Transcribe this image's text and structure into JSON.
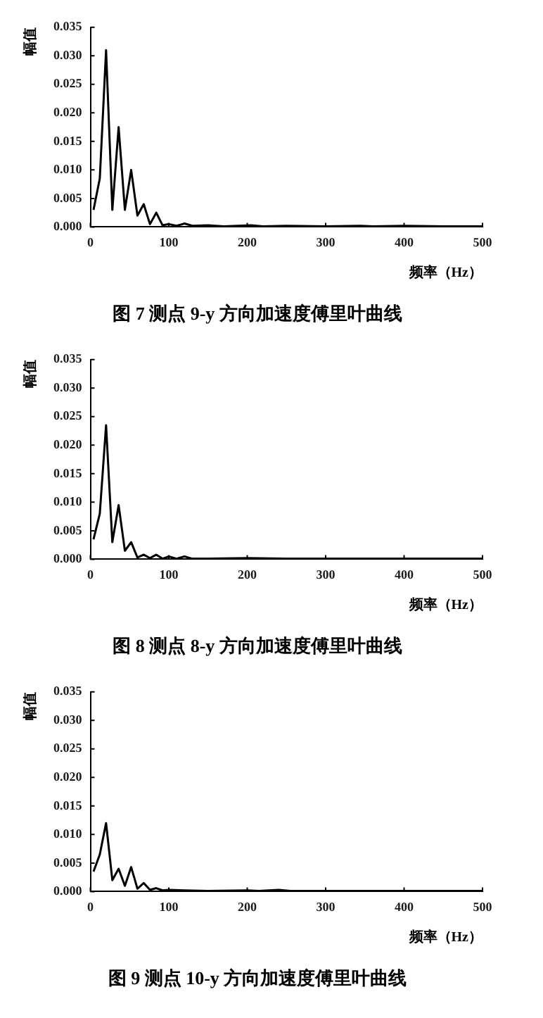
{
  "chart_data": [
    {
      "type": "line",
      "title": "图 7  测点 9-y 方向加速度傅里叶曲线",
      "xlabel": "频率（Hz）",
      "ylabel": "幅值",
      "marker": "none",
      "line_style": "solid",
      "xlim": [
        0,
        500
      ],
      "xticks": [
        0,
        100,
        200,
        300,
        400,
        500
      ],
      "ylim": [
        0,
        0.035
      ],
      "yticks": [
        {
          "value": 0,
          "label": "0.000"
        },
        {
          "value": 0.005,
          "label": "0.005"
        },
        {
          "value": 0.01,
          "label": "0.010"
        },
        {
          "value": 0.015,
          "label": "0.015"
        },
        {
          "value": 0.02,
          "label": "0.020"
        },
        {
          "value": 0.025,
          "label": "0.025"
        },
        {
          "value": 0.03,
          "label": "0.030"
        },
        {
          "value": 0.035,
          "label": "0.035"
        }
      ],
      "series": [
        {
          "color": "#000000",
          "x": [
            4,
            12,
            20,
            28,
            36,
            44,
            52,
            60,
            68,
            76,
            84,
            92,
            100,
            110,
            120,
            130,
            150,
            170,
            205,
            220,
            250,
            300,
            345,
            360,
            400,
            450,
            500
          ],
          "values": [
            0.003,
            0.0085,
            0.031,
            0.003,
            0.0175,
            0.003,
            0.01,
            0.002,
            0.004,
            0.0005,
            0.0025,
            0.0003,
            0.0005,
            0.0002,
            0.0006,
            0.0002,
            0.0003,
            0.0001,
            0.0003,
            0.0001,
            0.0002,
            0.0001,
            0.0002,
            0.0001,
            0.0002,
            0.0001,
            0.0001
          ]
        }
      ]
    },
    {
      "type": "line",
      "title": "图 8  测点 8-y 方向加速度傅里叶曲线",
      "xlabel": "频率（Hz）",
      "ylabel": "幅值",
      "marker": "none",
      "line_style": "solid",
      "xlim": [
        0,
        500
      ],
      "xticks": [
        0,
        100,
        200,
        300,
        400,
        500
      ],
      "ylim": [
        0,
        0.035
      ],
      "yticks": [
        {
          "value": 0,
          "label": "0.000"
        },
        {
          "value": 0.005,
          "label": "0.005"
        },
        {
          "value": 0.01,
          "label": "0.010"
        },
        {
          "value": 0.015,
          "label": "0.015"
        },
        {
          "value": 0.02,
          "label": "0.020"
        },
        {
          "value": 0.025,
          "label": "0.025"
        },
        {
          "value": 0.03,
          "label": "0.030"
        },
        {
          "value": 0.035,
          "label": "0.035"
        }
      ],
      "series": [
        {
          "color": "#000000",
          "x": [
            4,
            12,
            20,
            28,
            36,
            44,
            52,
            60,
            68,
            76,
            84,
            92,
            100,
            110,
            120,
            130,
            150,
            200,
            250,
            300,
            350,
            400,
            450,
            500
          ],
          "values": [
            0.0035,
            0.008,
            0.0235,
            0.003,
            0.0095,
            0.0015,
            0.003,
            0.0003,
            0.0008,
            0.0002,
            0.0008,
            0.0001,
            0.0005,
            0.0001,
            0.0005,
            0.0001,
            0.0001,
            0.0002,
            0.0001,
            0.0001,
            0.0001,
            0.0001,
            0.0001,
            0.0001
          ]
        }
      ]
    },
    {
      "type": "line",
      "title": "图 9  测点 10-y 方向加速度傅里叶曲线",
      "xlabel": "频率（Hz）",
      "ylabel": "幅值",
      "marker": "none",
      "line_style": "solid",
      "xlim": [
        0,
        500
      ],
      "xticks": [
        0,
        100,
        200,
        300,
        400,
        500
      ],
      "ylim": [
        0,
        0.035
      ],
      "yticks": [
        {
          "value": 0,
          "label": "0.000"
        },
        {
          "value": 0.005,
          "label": "0.005"
        },
        {
          "value": 0.01,
          "label": "0.010"
        },
        {
          "value": 0.015,
          "label": "0.015"
        },
        {
          "value": 0.02,
          "label": "0.020"
        },
        {
          "value": 0.025,
          "label": "0.025"
        },
        {
          "value": 0.03,
          "label": "0.030"
        },
        {
          "value": 0.035,
          "label": "0.035"
        }
      ],
      "series": [
        {
          "color": "#000000",
          "x": [
            4,
            12,
            20,
            28,
            36,
            44,
            52,
            60,
            68,
            76,
            84,
            92,
            100,
            120,
            150,
            200,
            215,
            240,
            255,
            300,
            350,
            400,
            450,
            500
          ],
          "values": [
            0.0035,
            0.0065,
            0.012,
            0.002,
            0.004,
            0.001,
            0.0043,
            0.0005,
            0.0015,
            0.0003,
            0.0006,
            0.0002,
            0.0003,
            0.0002,
            0.0001,
            0.0002,
            0.0001,
            0.0003,
            0.0001,
            0.0001,
            0.0001,
            0.0001,
            0.0001,
            0.0001
          ]
        }
      ]
    }
  ]
}
